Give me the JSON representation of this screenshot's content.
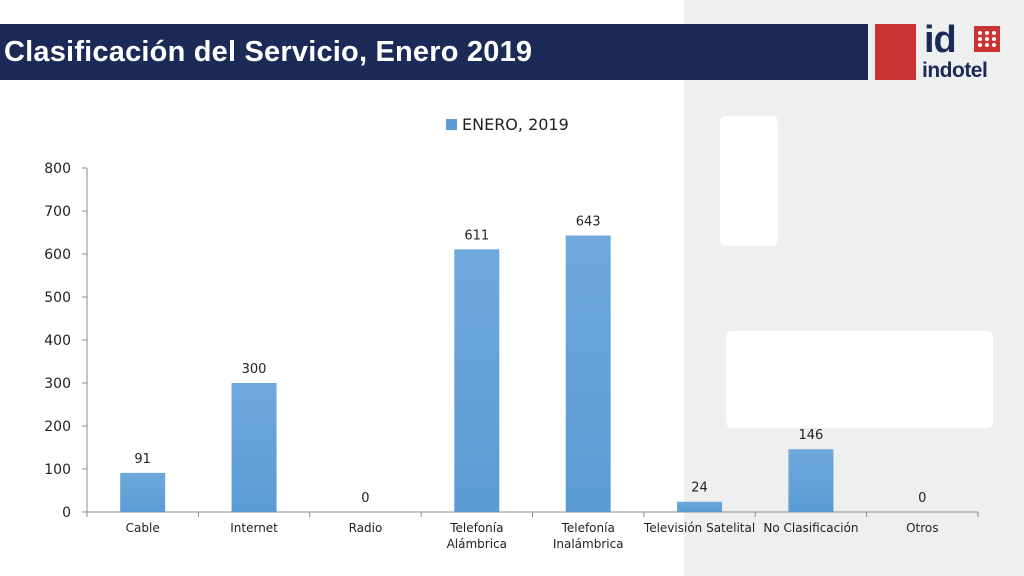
{
  "header": {
    "title": "Clasificación del Servicio, Enero 2019",
    "logo_text": "indotel",
    "logo_mark": "id"
  },
  "colors": {
    "title_bar": "#1b2a57",
    "bar": "#5b9bd5",
    "brand_red": "#cc3333"
  },
  "chart_data": {
    "type": "bar",
    "categories": [
      "Cable",
      "Internet",
      "Radio",
      "Telefonía Alámbrica",
      "Telefonía Inalámbrica",
      "Televisión Satelital",
      "No Clasificación",
      "Otros"
    ],
    "category_lines": [
      [
        "Cable"
      ],
      [
        "Internet"
      ],
      [
        "Radio"
      ],
      [
        "Telefonía",
        "Alámbrica"
      ],
      [
        "Telefonía",
        "Inalámbrica"
      ],
      [
        "Televisión Satelital"
      ],
      [
        "No Clasificación"
      ],
      [
        "Otros"
      ]
    ],
    "series": [
      {
        "name": "ENERO, 2019",
        "values": [
          91,
          300,
          0,
          611,
          643,
          24,
          146,
          0
        ]
      }
    ],
    "ylim": [
      0,
      800
    ],
    "yticks": [
      0,
      100,
      200,
      300,
      400,
      500,
      600,
      700,
      800
    ],
    "legend_position": "top",
    "grid": false
  }
}
